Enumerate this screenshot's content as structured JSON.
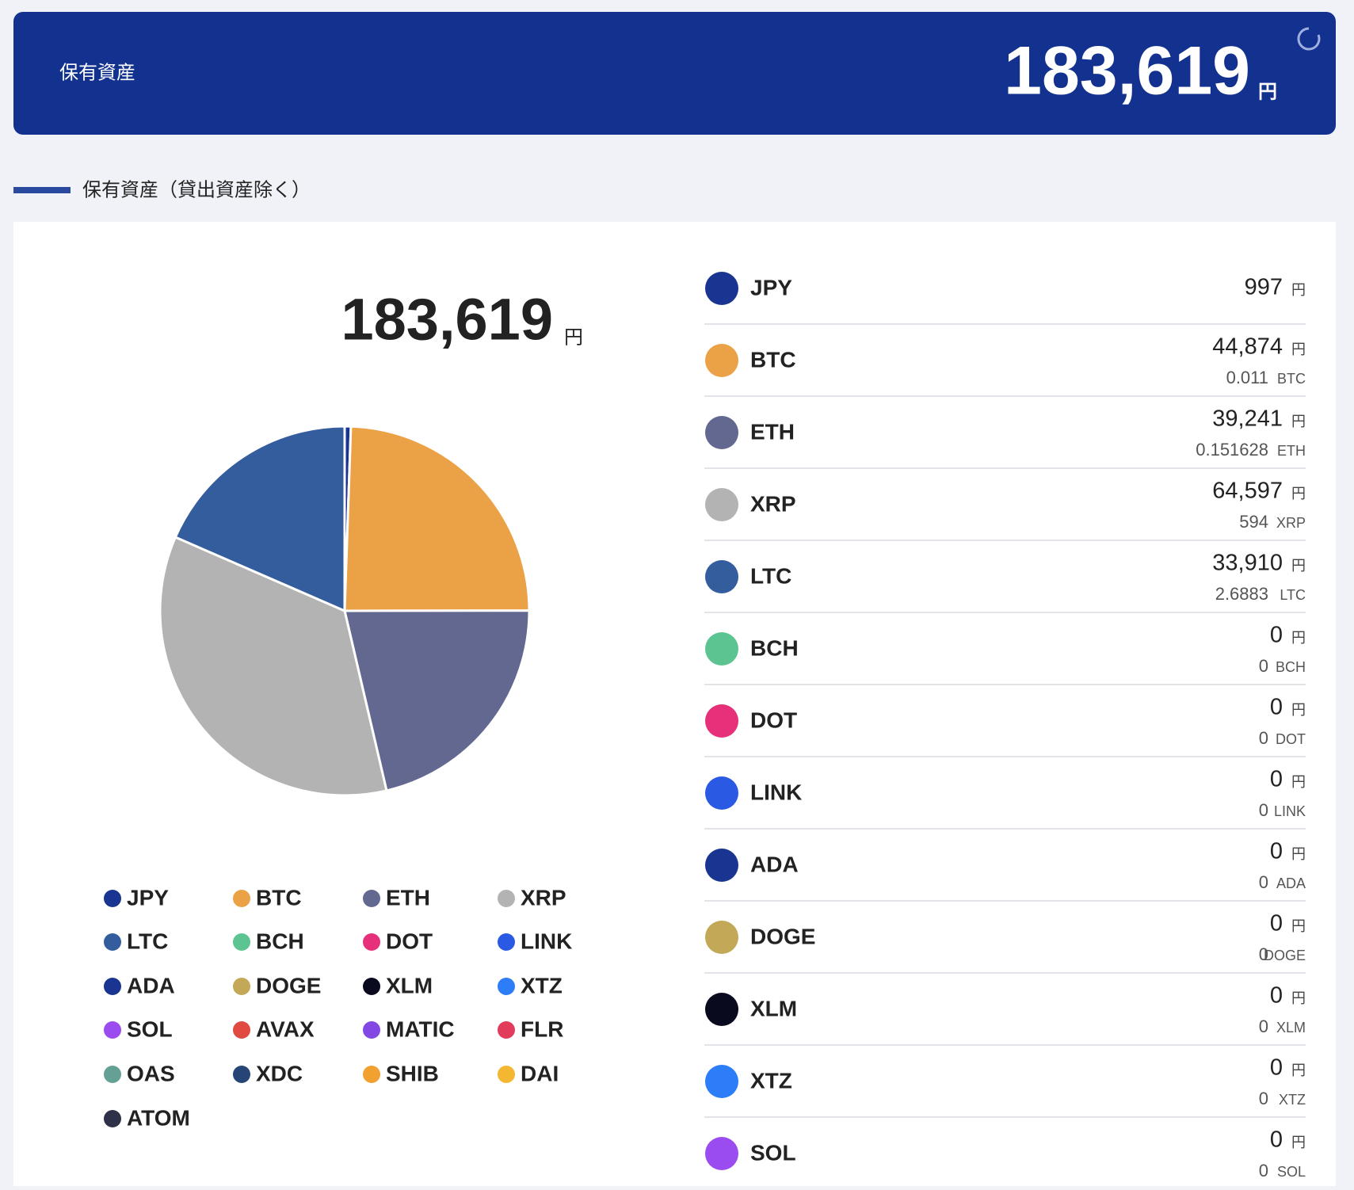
{
  "header": {
    "label": "保有資産",
    "total": "183,619",
    "unit": "円"
  },
  "section_title": "保有資産（貸出資産除く）",
  "chart_data": {
    "type": "pie",
    "total": "183,619",
    "unit": "円",
    "categories": [
      "JPY",
      "BTC",
      "ETH",
      "XRP",
      "LTC",
      "BCH",
      "DOT",
      "LINK",
      "ADA",
      "DOGE",
      "XLM",
      "XTZ",
      "SOL",
      "AVAX",
      "MATIC",
      "FLR",
      "OAS",
      "XDC",
      "SHIB",
      "DAI",
      "ATOM"
    ],
    "values": [
      997,
      44874,
      39241,
      64597,
      33910,
      0,
      0,
      0,
      0,
      0,
      0,
      0,
      0,
      0,
      0,
      0,
      0,
      0,
      0,
      0,
      0
    ],
    "colors": [
      "#1a3591",
      "#eba247",
      "#626890",
      "#b3b3b3",
      "#345d9d",
      "#5cc490",
      "#e6317a",
      "#2a5ae4",
      "#1a3591",
      "#c2a857",
      "#0a0a1e",
      "#2c7df7",
      "#9a4cf0",
      "#e04a40",
      "#8247e5",
      "#e13c5c",
      "#65a095",
      "#274476",
      "#f0a12f",
      "#f4b731",
      "#2e3148"
    ]
  },
  "holdings": [
    {
      "symbol": "JPY",
      "jpy": "997"
    },
    {
      "symbol": "BTC",
      "jpy": "44,874",
      "amount": "0.011"
    },
    {
      "symbol": "ETH",
      "jpy": "39,241",
      "amount": "0.151628"
    },
    {
      "symbol": "XRP",
      "jpy": "64,597",
      "amount": "594"
    },
    {
      "symbol": "LTC",
      "jpy": "33,910",
      "amount": "2.6883"
    },
    {
      "symbol": "BCH",
      "jpy": "0",
      "amount": "0"
    },
    {
      "symbol": "DOT",
      "jpy": "0",
      "amount": "0"
    },
    {
      "symbol": "LINK",
      "jpy": "0",
      "amount": "0"
    },
    {
      "symbol": "ADA",
      "jpy": "0",
      "amount": "0"
    },
    {
      "symbol": "DOGE",
      "jpy": "0",
      "amount": "0"
    },
    {
      "symbol": "XLM",
      "jpy": "0",
      "amount": "0"
    },
    {
      "symbol": "XTZ",
      "jpy": "0",
      "amount": "0"
    },
    {
      "symbol": "SOL",
      "jpy": "0",
      "amount": "0"
    }
  ]
}
